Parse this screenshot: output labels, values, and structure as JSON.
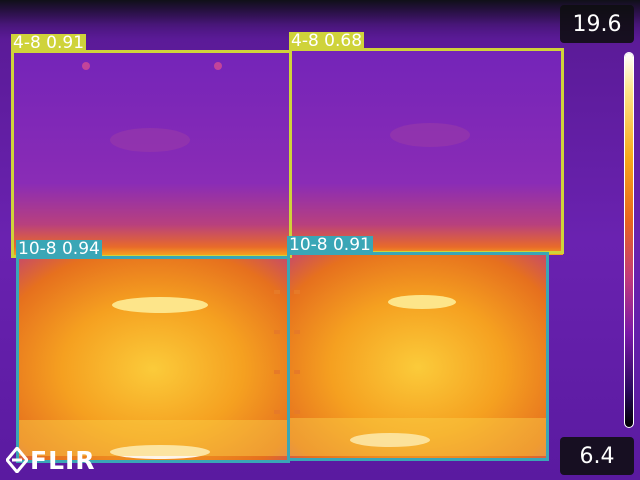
{
  "camera": {
    "brand": "FLIR",
    "temp_max": "19.6",
    "temp_min": "6.4",
    "palette": "iron",
    "palette_colors": [
      "#000000",
      "#2a0a5e",
      "#7a18a8",
      "#c23a7a",
      "#e8641e",
      "#f8a81a",
      "#fde58a",
      "#ffffff"
    ]
  },
  "detections": [
    {
      "label": "4-8 0.91",
      "class": "4-8",
      "confidence": 0.91,
      "color": "#cfd33a"
    },
    {
      "label": "4-8 0.68",
      "class": "4-8",
      "confidence": 0.68,
      "color": "#cfd33a"
    },
    {
      "label": "10-8 0.94",
      "class": "10-8",
      "confidence": 0.94,
      "color": "#3aa6b6"
    },
    {
      "label": "10-8 0.91",
      "class": "10-8",
      "confidence": 0.91,
      "color": "#3aa6b6"
    }
  ]
}
